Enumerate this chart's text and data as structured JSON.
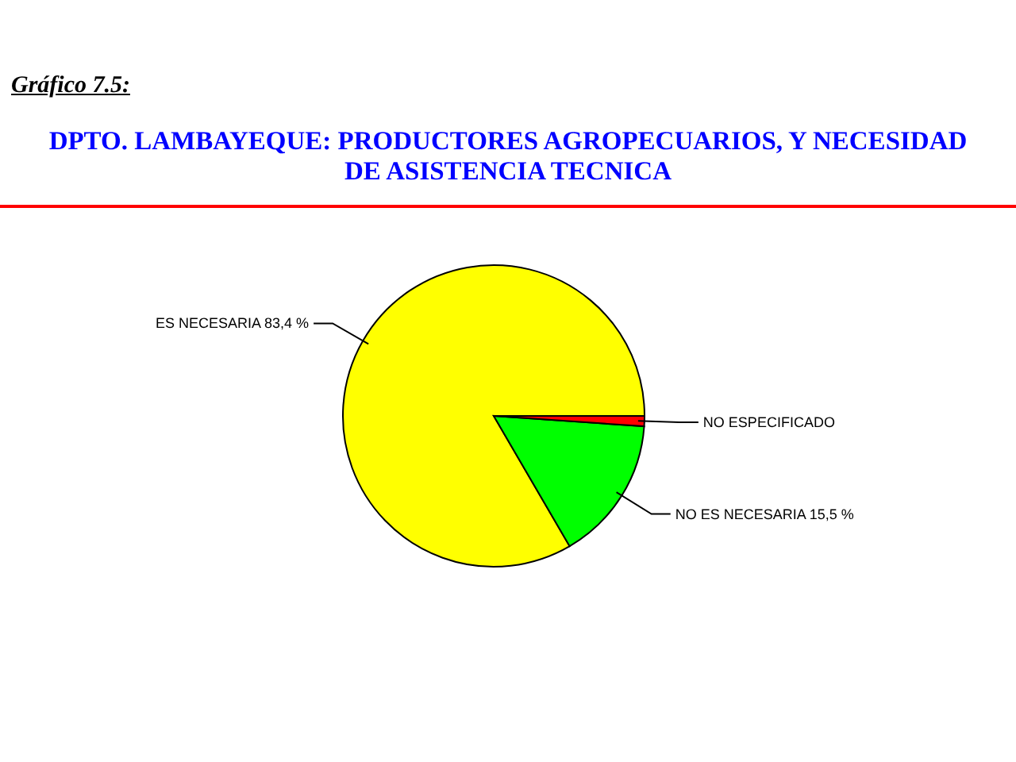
{
  "chart_data": {
    "type": "pie",
    "title": "DPTO. LAMBAYEQUE: PRODUCTORES AGROPECUARIOS, Y NECESIDAD DE ASISTENCIA TECNICA",
    "annotations": [
      "Gráfico 7.5:"
    ],
    "categories": [
      "ES NECESARIA",
      "NO ES NECESARIA",
      "NO ESPECIFICADO"
    ],
    "values": [
      83.4,
      15.5,
      1.1
    ],
    "colors": [
      "#ffff00",
      "#00ff00",
      "#ff0000"
    ],
    "value_labels": [
      "83,4 %",
      "15,5 %",
      null
    ]
  }
}
